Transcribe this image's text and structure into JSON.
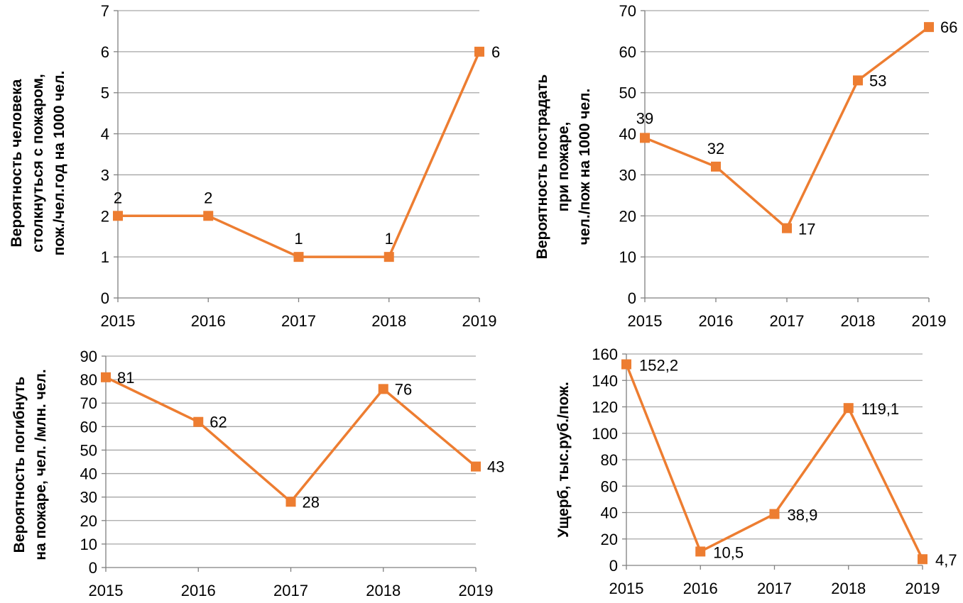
{
  "colors": {
    "series": "#ED7D31",
    "grid": "#A6A6A6",
    "axis": "#808080"
  },
  "chart_data": [
    {
      "type": "line",
      "categories": [
        "2015",
        "2016",
        "2017",
        "2018",
        "2019"
      ],
      "values": [
        2,
        2,
        1,
        1,
        6
      ],
      "data_labels": [
        "2",
        "2",
        "1",
        "1",
        "6"
      ],
      "label_position": "above",
      "ylabel_lines": [
        "Вероятность человека",
        "столкнуться с пожаром,",
        "пож./чел.год на 1000 чел."
      ],
      "ylim": [
        0,
        7
      ],
      "yticks": [
        0,
        1,
        2,
        3,
        4,
        5,
        6,
        7
      ],
      "grid": true,
      "marker": "square"
    },
    {
      "type": "line",
      "categories": [
        "2015",
        "2016",
        "2017",
        "2018",
        "2019"
      ],
      "values": [
        39,
        32,
        17,
        53,
        66
      ],
      "data_labels": [
        "39",
        "32",
        "17",
        "53",
        "66"
      ],
      "label_position": "mixed",
      "ylabel_lines": [
        "Вероятность пострадать",
        "при пожаре,",
        "чел./пож на 1000 чел."
      ],
      "ylim": [
        0,
        70
      ],
      "yticks": [
        0,
        10,
        20,
        30,
        40,
        50,
        60,
        70
      ],
      "grid": true,
      "marker": "square"
    },
    {
      "type": "line",
      "categories": [
        "2015",
        "2016",
        "2017",
        "2018",
        "2019"
      ],
      "values": [
        81,
        62,
        28,
        76,
        43
      ],
      "data_labels": [
        "81",
        "62",
        "28",
        "76",
        "43"
      ],
      "label_position": "right",
      "ylabel_lines": [
        "Вероятность погибнуть",
        "на пожаре, чел. /млн. чел."
      ],
      "ylim": [
        0,
        90
      ],
      "yticks": [
        0,
        10,
        20,
        30,
        40,
        50,
        60,
        70,
        80,
        90
      ],
      "grid": true,
      "marker": "square"
    },
    {
      "type": "line",
      "categories": [
        "2015",
        "2016",
        "2017",
        "2018",
        "2019"
      ],
      "values": [
        152.2,
        10.5,
        38.9,
        119.1,
        4.7
      ],
      "data_labels": [
        "152,2",
        "10,5",
        "38,9",
        "119,1",
        "4,7"
      ],
      "label_position": "right",
      "ylabel_lines": [
        "Ущерб, тыс.руб./пож."
      ],
      "ylim": [
        0,
        160
      ],
      "yticks": [
        0,
        20,
        40,
        60,
        80,
        100,
        120,
        140,
        160
      ],
      "grid": true,
      "marker": "square"
    }
  ]
}
